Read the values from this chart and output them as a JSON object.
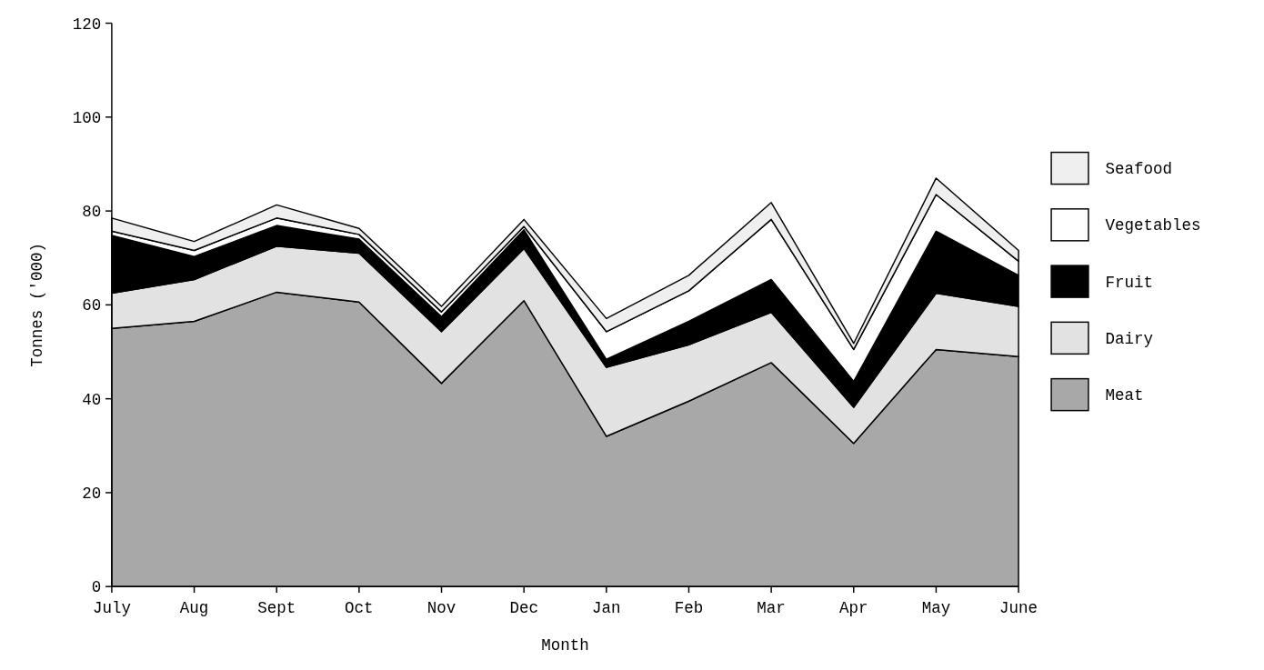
{
  "chart_data": {
    "type": "area",
    "stacked": true,
    "xlabel": "Month",
    "ylabel": "Tonnes ('000)",
    "categories": [
      "July",
      "Aug",
      "Sept",
      "Oct",
      "Nov",
      "Dec",
      "Jan",
      "Feb",
      "Mar",
      "Apr",
      "May",
      "June"
    ],
    "ylim": [
      0,
      120
    ],
    "yticks": [
      0,
      20,
      40,
      60,
      80,
      100,
      120
    ],
    "legend": "right",
    "grid": false,
    "series": [
      {
        "name": "Meat",
        "color": "#a8a8a8",
        "values": [
          55,
          56.5,
          62.7,
          60.6,
          43.3,
          60.9,
          32,
          39.5,
          47.7,
          30.5,
          50.5,
          49
        ]
      },
      {
        "name": "Dairy",
        "color": "#e2e2e2",
        "values": [
          7.5,
          8.9,
          9.8,
          10.4,
          11,
          11.1,
          14.7,
          12,
          10.7,
          7.7,
          12,
          10.7
        ]
      },
      {
        "name": "Fruit",
        "color": "#000000",
        "values": [
          12.3,
          4.9,
          4.4,
          3,
          3.2,
          4,
          1.7,
          5,
          7,
          5.5,
          13.2,
          6.6
        ]
      },
      {
        "name": "Vegetables",
        "color": "#ffffff",
        "values": [
          0.9,
          1.3,
          1.6,
          1,
          1,
          0.7,
          5.9,
          6.5,
          12.8,
          6.8,
          7.8,
          3
        ]
      },
      {
        "name": "Seafood",
        "color": "#efefef",
        "values": [
          2.8,
          1.9,
          2.8,
          1.3,
          1.2,
          1.5,
          2.8,
          3.3,
          3.6,
          1.3,
          3.5,
          2.3
        ]
      }
    ]
  }
}
